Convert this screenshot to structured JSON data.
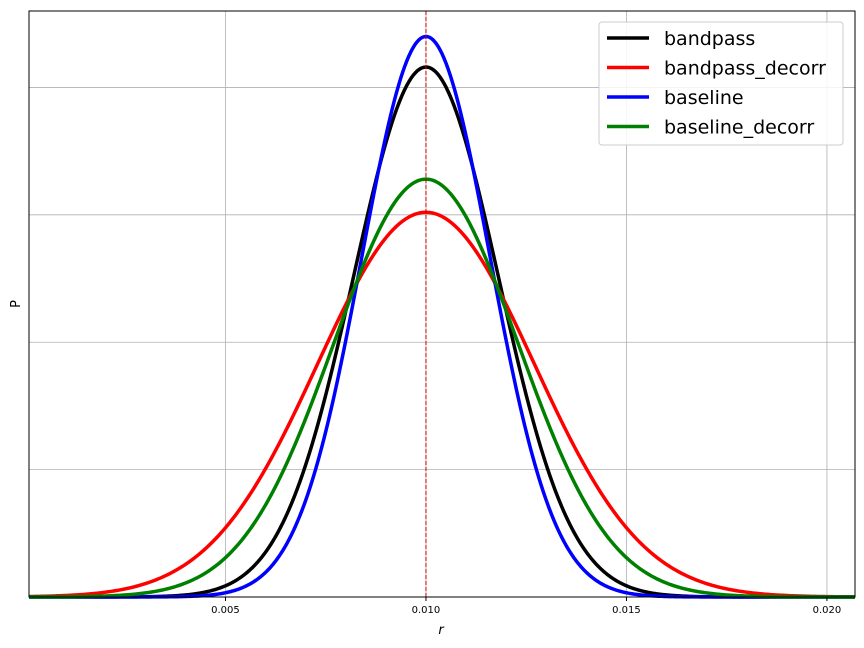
{
  "chart_data": {
    "type": "line",
    "title": "",
    "xlabel": "r",
    "ylabel": "P",
    "xlim": [
      0.0001,
      0.0207
    ],
    "ylim": [
      0,
      1.15
    ],
    "x_ticks": [
      0.005,
      0.01,
      0.015,
      0.02
    ],
    "x_tick_labels": [
      "0.005",
      "0.010",
      "0.015",
      "0.020"
    ],
    "y_gridlines": [
      0.25,
      0.5,
      0.75,
      1.0
    ],
    "y_tick_labels_shown": false,
    "grid": true,
    "legend_position": "top-right",
    "reference_line": {
      "x": 0.01,
      "color": "#cc0000",
      "style": "dashed"
    },
    "series": [
      {
        "name": "bandpass",
        "color": "#000000",
        "distribution": "gaussian",
        "mean": 0.01,
        "sigma": 0.0018,
        "peak": 1.04
      },
      {
        "name": "bandpass_decorr",
        "color": "#ff0000",
        "distribution": "gaussian",
        "mean": 0.01,
        "sigma": 0.0027,
        "peak": 0.755
      },
      {
        "name": "baseline",
        "color": "#0000ff",
        "distribution": "gaussian",
        "mean": 0.01,
        "sigma": 0.0016,
        "peak": 1.1
      },
      {
        "name": "baseline_decorr",
        "color": "#008000",
        "distribution": "gaussian",
        "mean": 0.01,
        "sigma": 0.0023,
        "peak": 0.82
      }
    ]
  }
}
